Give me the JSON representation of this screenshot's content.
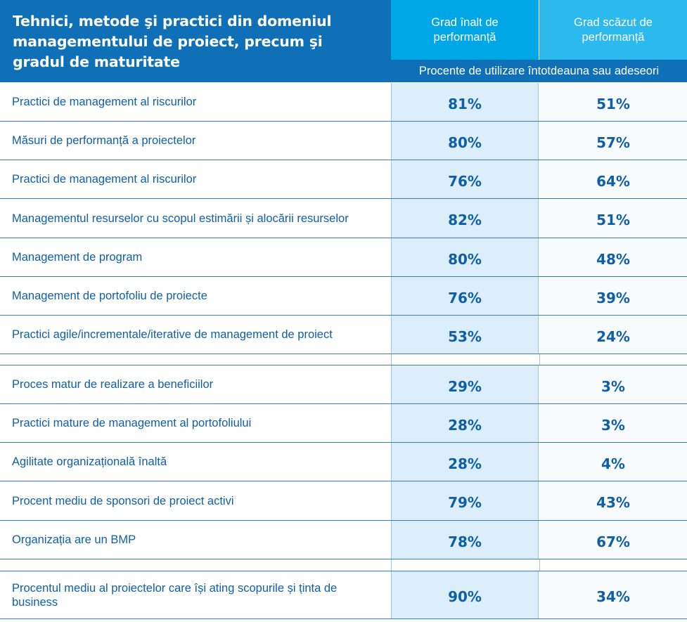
{
  "header": {
    "title": "Tehnici, metode şi practici din domeniul managementului de proiect, precum şi gradul de maturitate",
    "col_high": "Grad înalt de performanță",
    "col_low": "Grad scăzut de performanță",
    "subheader": "Procente de utilizare întotdeauna sau adeseori"
  },
  "group1": [
    {
      "label": "Practici de management al riscurilor",
      "high": "81%",
      "low": "51%"
    },
    {
      "label": "Măsuri de performanță a proiectelor",
      "high": "80%",
      "low": "57%"
    },
    {
      "label": "Practici de management al riscurilor",
      "high": "76%",
      "low": "64%"
    },
    {
      "label": "Managementul resurselor cu scopul estimării și alocării resurselor",
      "high": "82%",
      "low": "51%"
    },
    {
      "label": "Management de program",
      "high": "80%",
      "low": "48%"
    },
    {
      "label": "Management de portofoliu de proiecte",
      "high": "76%",
      "low": "39%"
    },
    {
      "label": "Practici agile/incrementale/iterative de management de proiect",
      "high": "53%",
      "low": "24%"
    }
  ],
  "group2": [
    {
      "label": "Proces matur de realizare a beneficiilor",
      "high": "29%",
      "low": "3%"
    },
    {
      "label": "Practici mature de management al portofoliului",
      "high": "28%",
      "low": "3%"
    },
    {
      "label": "Agilitate organizațională înaltă",
      "high": "28%",
      "low": "4%"
    },
    {
      "label": "Procent mediu de sponsori de proiect activi",
      "high": "79%",
      "low": "43%"
    },
    {
      "label": "Organizația are un BMP",
      "high": "78%",
      "low": "67%"
    }
  ],
  "group3": [
    {
      "label": "Procentul mediu al proiectelor care își ating scopurile și ținta de business",
      "high": "90%",
      "low": "34%"
    }
  ]
}
